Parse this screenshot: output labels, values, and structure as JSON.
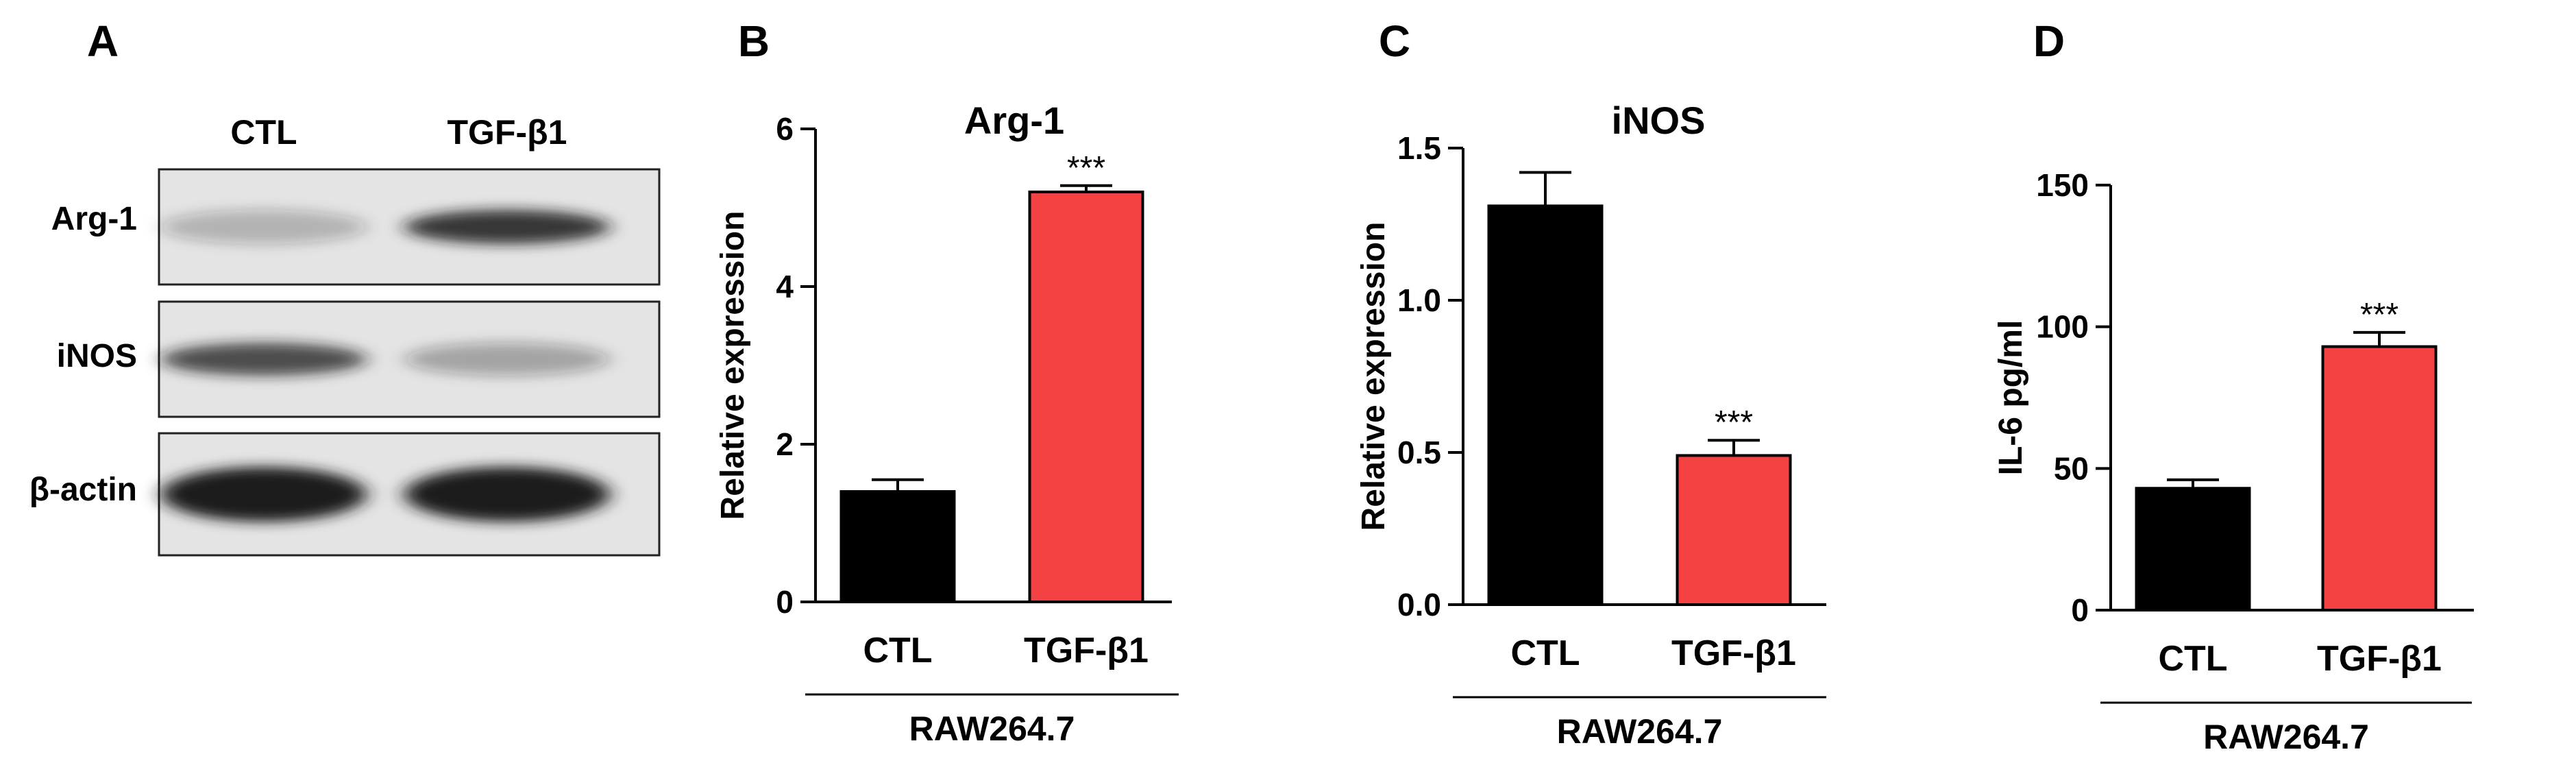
{
  "colors": {
    "ctl_bar": "#000000",
    "tgf_bar": "#f44242",
    "axis": "#000000",
    "blot_bg": "#e4e4e4",
    "blot_band": "#1a1a1a"
  },
  "panel_a": {
    "letter": "A",
    "lanes": [
      "CTL",
      "TGF-β1"
    ],
    "rows": [
      {
        "label": "Arg-1",
        "intensities": [
          0.25,
          0.85
        ]
      },
      {
        "label": "iNOS",
        "intensities": [
          0.75,
          0.32
        ]
      },
      {
        "label": "β-actin",
        "intensities": [
          1.0,
          1.0
        ]
      }
    ]
  },
  "chart_data": [
    {
      "type": "bar",
      "panel": "B",
      "title": "Arg-1",
      "categories": [
        "CTL",
        "TGF-β1"
      ],
      "values": [
        1.4,
        5.2
      ],
      "errors": [
        0.15,
        0.08
      ],
      "significance": [
        "",
        "***"
      ],
      "ylabel": "Relative expression",
      "xlabel": "",
      "group_label": "RAW264.7",
      "ylim": [
        0,
        6
      ],
      "yticks": [
        0,
        2,
        4,
        6
      ],
      "ytick_labels": [
        "0",
        "2",
        "4",
        "6"
      ]
    },
    {
      "type": "bar",
      "panel": "C",
      "title": "iNOS",
      "categories": [
        "CTL",
        "TGF-β1"
      ],
      "values": [
        1.31,
        0.49
      ],
      "errors": [
        0.11,
        0.05
      ],
      "significance": [
        "",
        "***"
      ],
      "ylabel": "Relative expression",
      "xlabel": "",
      "group_label": "RAW264.7",
      "ylim": [
        0,
        1.5
      ],
      "yticks": [
        0,
        0.5,
        1.0,
        1.5
      ],
      "ytick_labels": [
        "0.0",
        "0.5",
        "1.0",
        "1.5"
      ]
    },
    {
      "type": "bar",
      "panel": "D",
      "title": "",
      "categories": [
        "CTL",
        "TGF-β1"
      ],
      "values": [
        43,
        93
      ],
      "errors": [
        3,
        5
      ],
      "significance": [
        "",
        "***"
      ],
      "ylabel": "IL-6 pg/ml",
      "xlabel": "",
      "group_label": "RAW264.7",
      "ylim": [
        0,
        150
      ],
      "yticks": [
        0,
        50,
        100,
        150
      ],
      "ytick_labels": [
        "0",
        "50",
        "100",
        "150"
      ]
    }
  ]
}
